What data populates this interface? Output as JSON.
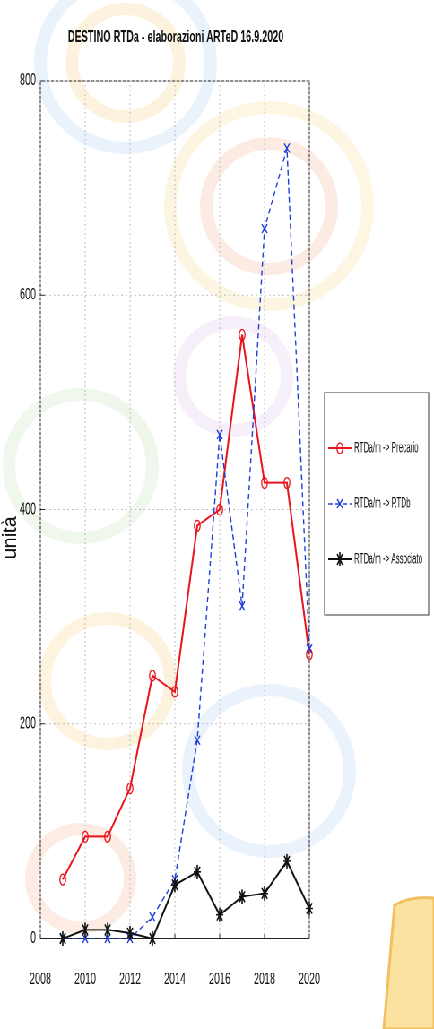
{
  "chart_data": {
    "type": "line",
    "title": "DESTINO RTDa - elaborazioni ARTeD 16.9.2020",
    "ylabel": "unità",
    "xlabel": "",
    "xlim": [
      2008,
      2020
    ],
    "ylim": [
      0,
      800
    ],
    "x_ticks": [
      "2008",
      "2010",
      "2012",
      "2014",
      "2016",
      "2018",
      "2020"
    ],
    "y_ticks": [
      "0",
      "200",
      "400",
      "600",
      "800"
    ],
    "grid": true,
    "legend_position": "right",
    "x": [
      2009,
      2010,
      2011,
      2012,
      2013,
      2014,
      2015,
      2016,
      2017,
      2018,
      2019,
      2020
    ],
    "series": [
      {
        "name": "RTDa/m -> Precario",
        "color": "#e8141c",
        "line_style": "solid",
        "marker": "circle",
        "values": [
          55,
          95,
          95,
          140,
          245,
          230,
          385,
          400,
          563,
          425,
          425,
          265
        ]
      },
      {
        "name": "RTDa/m -> RTDb",
        "color": "#1f3fd6",
        "line_style": "dashed",
        "marker": "x",
        "values": [
          0,
          0,
          0,
          0,
          20,
          55,
          185,
          470,
          310,
          662,
          737,
          270
        ]
      },
      {
        "name": "RTDa/m -> Associato",
        "color": "#111111",
        "line_style": "solid",
        "marker": "star",
        "values": [
          0,
          8,
          8,
          5,
          0,
          50,
          62,
          22,
          39,
          42,
          72,
          28
        ]
      }
    ]
  }
}
